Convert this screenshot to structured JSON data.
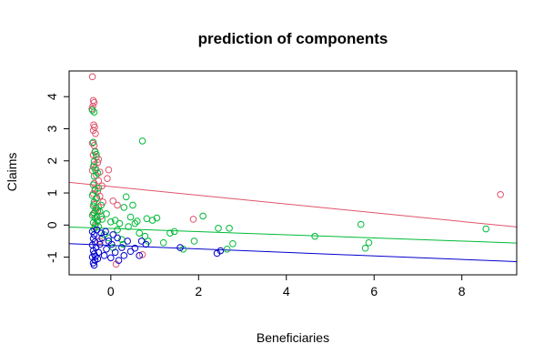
{
  "chart_data": {
    "type": "scatter",
    "title": "prediction of components",
    "xlabel": "Beneficiaries",
    "ylabel": "Claims",
    "xlim": [
      -0.95,
      9.25
    ],
    "ylim": [
      -1.55,
      4.8
    ],
    "xticks": [
      0,
      2,
      4,
      6,
      8
    ],
    "yticks": [
      -1,
      0,
      1,
      2,
      3,
      4
    ],
    "grid": false,
    "legend": "none",
    "marker": "open-circle",
    "series": [
      {
        "color": "#DF536B",
        "points": [
          [
            -0.42,
            4.62
          ],
          [
            -0.4,
            3.88
          ],
          [
            -0.38,
            3.82
          ],
          [
            -0.41,
            3.7
          ],
          [
            -0.43,
            3.62
          ],
          [
            -0.39,
            3.12
          ],
          [
            -0.37,
            3.05
          ],
          [
            -0.4,
            2.95
          ],
          [
            -0.35,
            2.85
          ],
          [
            -0.42,
            2.55
          ],
          [
            -0.38,
            2.48
          ],
          [
            -0.36,
            2.3
          ],
          [
            -0.4,
            2.18
          ],
          [
            -0.33,
            2.12
          ],
          [
            -0.28,
            2.05
          ],
          [
            -0.3,
            1.95
          ],
          [
            -0.38,
            1.88
          ],
          [
            -0.35,
            1.78
          ],
          [
            -0.42,
            1.7
          ],
          [
            -0.05,
            1.72
          ],
          [
            -0.25,
            1.65
          ],
          [
            -0.33,
            1.55
          ],
          [
            -0.08,
            1.45
          ],
          [
            -0.28,
            1.38
          ],
          [
            -0.38,
            1.3
          ],
          [
            -0.2,
            1.22
          ],
          [
            -0.36,
            1.12
          ],
          [
            -0.3,
            1.05
          ],
          [
            -0.4,
            0.98
          ],
          [
            -0.25,
            0.9
          ],
          [
            -0.33,
            0.82
          ],
          [
            0.05,
            0.75
          ],
          [
            -0.18,
            0.72
          ],
          [
            -0.38,
            0.65
          ],
          [
            -0.28,
            0.55
          ],
          [
            -0.35,
            0.45
          ],
          [
            -0.4,
            0.35
          ],
          [
            -0.22,
            0.28
          ],
          [
            1.88,
            0.18
          ],
          [
            -0.3,
            0.12
          ],
          [
            8.88,
            0.95
          ],
          [
            -0.36,
            -0.05
          ],
          [
            0.12,
            -1.22
          ],
          [
            0.72,
            -0.92
          ],
          [
            -0.25,
            -0.5
          ],
          [
            0.15,
            0.62
          ]
        ]
      },
      {
        "color": "#28E2E5",
        "points": []
      },
      {
        "color": "#00BA38",
        "points": [
          [
            -0.42,
            3.58
          ],
          [
            -0.38,
            3.52
          ],
          [
            -0.4,
            2.58
          ],
          [
            -0.36,
            2.28
          ],
          [
            -0.33,
            2.2
          ],
          [
            -0.38,
            1.98
          ],
          [
            -0.4,
            1.82
          ],
          [
            -0.35,
            1.72
          ],
          [
            -0.3,
            1.62
          ],
          [
            -0.38,
            1.52
          ],
          [
            -0.4,
            1.25
          ],
          [
            -0.28,
            1.15
          ],
          [
            -0.36,
            1.08
          ],
          [
            -0.42,
            0.92
          ],
          [
            -0.32,
            0.85
          ],
          [
            -0.38,
            0.72
          ],
          [
            -0.4,
            0.6
          ],
          [
            -0.34,
            0.52
          ],
          [
            -0.3,
            0.45
          ],
          [
            -0.38,
            0.38
          ],
          [
            -0.42,
            0.3
          ],
          [
            -0.36,
            0.22
          ],
          [
            -0.3,
            0.15
          ],
          [
            -0.4,
            0.08
          ],
          [
            -0.35,
            0.02
          ],
          [
            -0.28,
            -0.05
          ],
          [
            -0.38,
            -0.12
          ],
          [
            -0.32,
            0.25
          ],
          [
            -0.2,
            0.18
          ],
          [
            -0.1,
            0.35
          ],
          [
            0.0,
            0.1
          ],
          [
            0.1,
            0.15
          ],
          [
            0.2,
            0.05
          ],
          [
            0.3,
            0.55
          ],
          [
            0.35,
            0.88
          ],
          [
            0.45,
            0.25
          ],
          [
            0.55,
            0.05
          ],
          [
            0.6,
            0.12
          ],
          [
            0.72,
            2.62
          ],
          [
            0.78,
            -0.35
          ],
          [
            0.85,
            -0.5
          ],
          [
            0.95,
            0.15
          ],
          [
            1.05,
            0.22
          ],
          [
            1.2,
            -0.55
          ],
          [
            1.35,
            -0.25
          ],
          [
            1.45,
            -0.2
          ],
          [
            1.65,
            -0.75
          ],
          [
            1.9,
            -0.5
          ],
          [
            2.1,
            0.28
          ],
          [
            2.45,
            -0.1
          ],
          [
            2.65,
            -0.75
          ],
          [
            2.7,
            -0.1
          ],
          [
            2.78,
            -0.58
          ],
          [
            4.65,
            -0.35
          ],
          [
            5.7,
            0.02
          ],
          [
            5.8,
            -0.72
          ],
          [
            5.88,
            -0.55
          ],
          [
            8.55,
            -0.12
          ],
          [
            -0.15,
            -0.3
          ],
          [
            0.05,
            -0.7
          ],
          [
            0.25,
            -0.45
          ],
          [
            -0.22,
            0.62
          ],
          [
            0.15,
            -0.15
          ],
          [
            0.4,
            -0.05
          ],
          [
            0.5,
            0.62
          ],
          [
            -0.05,
            -0.4
          ],
          [
            0.65,
            -0.25
          ],
          [
            0.82,
            0.2
          ],
          [
            -0.25,
            0.42
          ],
          [
            0.28,
            -0.6
          ]
        ]
      },
      {
        "color": "#0000CD",
        "points": [
          [
            -0.42,
            -0.2
          ],
          [
            -0.38,
            -0.3
          ],
          [
            -0.4,
            -0.42
          ],
          [
            -0.36,
            -0.52
          ],
          [
            -0.42,
            -0.62
          ],
          [
            -0.34,
            -0.7
          ],
          [
            -0.4,
            -0.8
          ],
          [
            -0.38,
            -0.9
          ],
          [
            -0.42,
            -1.0
          ],
          [
            -0.36,
            -1.1
          ],
          [
            -0.4,
            -1.18
          ],
          [
            -0.38,
            -1.25
          ],
          [
            -0.3,
            -1.05
          ],
          [
            -0.28,
            -0.85
          ],
          [
            -0.25,
            -0.6
          ],
          [
            -0.2,
            -0.4
          ],
          [
            -0.15,
            -0.95
          ],
          [
            -0.1,
            -0.75
          ],
          [
            -0.05,
            -0.5
          ],
          [
            0.0,
            -1.02
          ],
          [
            0.05,
            -0.3
          ],
          [
            0.1,
            -0.85
          ],
          [
            0.18,
            -1.1
          ],
          [
            0.25,
            -0.7
          ],
          [
            0.3,
            -0.95
          ],
          [
            0.38,
            -0.5
          ],
          [
            0.45,
            -0.82
          ],
          [
            0.55,
            -0.72
          ],
          [
            0.65,
            -0.95
          ],
          [
            0.7,
            -0.5
          ],
          [
            0.8,
            -0.6
          ],
          [
            1.58,
            -0.7
          ],
          [
            2.42,
            -0.88
          ],
          [
            2.5,
            -0.8
          ],
          [
            -0.32,
            -0.15
          ],
          [
            -0.22,
            -0.25
          ],
          [
            -0.12,
            -0.2
          ],
          [
            0.02,
            -0.6
          ],
          [
            0.15,
            -0.4
          ],
          [
            -0.35,
            -0.98
          ]
        ]
      }
    ],
    "lines": [
      {
        "color": "#DF536B",
        "x": [
          -0.95,
          9.25
        ],
        "y": [
          1.33,
          -0.06
        ]
      },
      {
        "color": "#00BA38",
        "x": [
          -0.95,
          9.25
        ],
        "y": [
          -0.06,
          -0.56
        ]
      },
      {
        "color": "#0000CD",
        "x": [
          -0.95,
          9.25
        ],
        "y": [
          -0.58,
          -1.14
        ]
      }
    ]
  }
}
